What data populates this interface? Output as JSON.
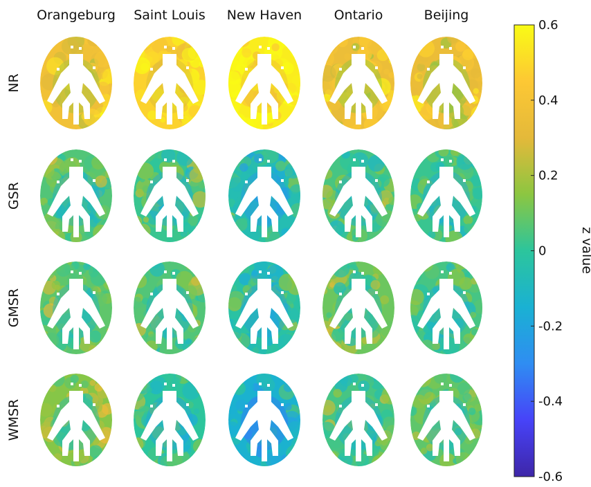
{
  "columns": [
    "Orangeburg",
    "Saint Louis",
    "New Haven",
    "Ontario",
    "Beijing"
  ],
  "rows": [
    "NR",
    "GSR",
    "GMSR",
    "WMSR"
  ],
  "colorbar": {
    "label": "z value",
    "min": -0.6,
    "max": 0.6,
    "ticks": [
      "0.6",
      "0.4",
      "0.2",
      "0",
      "-0.2",
      "-0.4",
      "-0.6"
    ],
    "colormap": [
      "#3e26a8",
      "#4743f8",
      "#2f8df2",
      "#1ab1d3",
      "#2cc59c",
      "#8cc641",
      "#e4b93a",
      "#fdc834",
      "#f9fb15"
    ]
  },
  "maps": [
    {
      "row": "NR",
      "values": [
        0.38,
        0.48,
        0.56,
        0.35,
        0.34
      ]
    },
    {
      "row": "GSR",
      "values": [
        0.06,
        0.02,
        -0.06,
        0.04,
        0.02
      ]
    },
    {
      "row": "GMSR",
      "values": [
        0.08,
        0.06,
        -0.02,
        0.1,
        0.04
      ]
    },
    {
      "row": "WMSR",
      "values": [
        0.14,
        0.0,
        -0.14,
        0.04,
        0.08
      ]
    }
  ]
}
